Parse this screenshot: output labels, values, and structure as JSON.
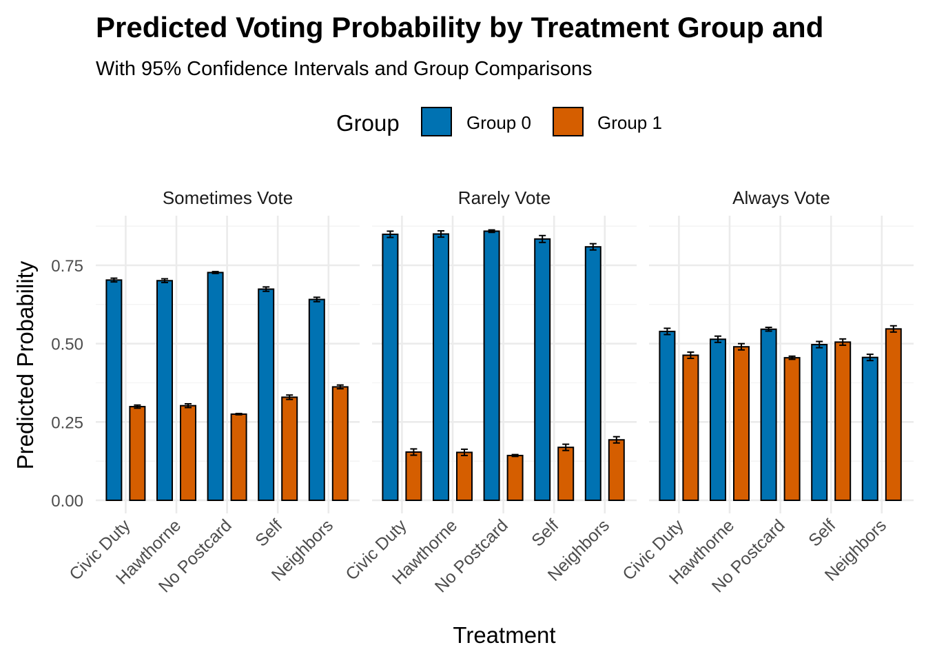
{
  "chart_data": {
    "type": "bar",
    "title": "Predicted Voting Probability by Treatment Group and",
    "subtitle": "With 95% Confidence Intervals and Group Comparisons",
    "xlabel": "Treatment",
    "ylabel": "Predicted Probability",
    "ylim": [
      0,
      0.87
    ],
    "yticks": [
      "0.00",
      "0.25",
      "0.50",
      "0.75"
    ],
    "ytick_values": [
      0,
      0.25,
      0.5,
      0.75
    ],
    "grid": true,
    "legend": {
      "title": "Group",
      "position": "top",
      "entries": [
        "Group 0",
        "Group 1"
      ]
    },
    "colors": {
      "Group 0": "#0072B2",
      "Group 1": "#D55E00"
    },
    "categories": [
      "Civic Duty",
      "Hawthorne",
      "No Postcard",
      "Self",
      "Neighbors"
    ],
    "facets": [
      {
        "label": "Sometimes Vote",
        "series": [
          {
            "name": "Group 0",
            "values": [
              0.703,
              0.701,
              0.727,
              0.674,
              0.641
            ],
            "errors": [
              0.006,
              0.006,
              0.003,
              0.007,
              0.007
            ]
          },
          {
            "name": "Group 1",
            "values": [
              0.299,
              0.302,
              0.275,
              0.329,
              0.362
            ],
            "errors": [
              0.005,
              0.006,
              0.002,
              0.007,
              0.006
            ]
          }
        ]
      },
      {
        "label": "Rarely Vote",
        "series": [
          {
            "name": "Group 0",
            "values": [
              0.849,
              0.85,
              0.859,
              0.834,
              0.809
            ],
            "errors": [
              0.01,
              0.01,
              0.004,
              0.011,
              0.01
            ]
          },
          {
            "name": "Group 1",
            "values": [
              0.154,
              0.153,
              0.143,
              0.169,
              0.193
            ],
            "errors": [
              0.01,
              0.01,
              0.003,
              0.01,
              0.01
            ]
          }
        ]
      },
      {
        "label": "Always Vote",
        "series": [
          {
            "name": "Group 0",
            "values": [
              0.539,
              0.514,
              0.546,
              0.497,
              0.456
            ],
            "errors": [
              0.01,
              0.01,
              0.006,
              0.01,
              0.01
            ]
          },
          {
            "name": "Group 1",
            "values": [
              0.463,
              0.49,
              0.455,
              0.505,
              0.547
            ],
            "errors": [
              0.01,
              0.01,
              0.005,
              0.01,
              0.01
            ]
          }
        ]
      }
    ]
  }
}
